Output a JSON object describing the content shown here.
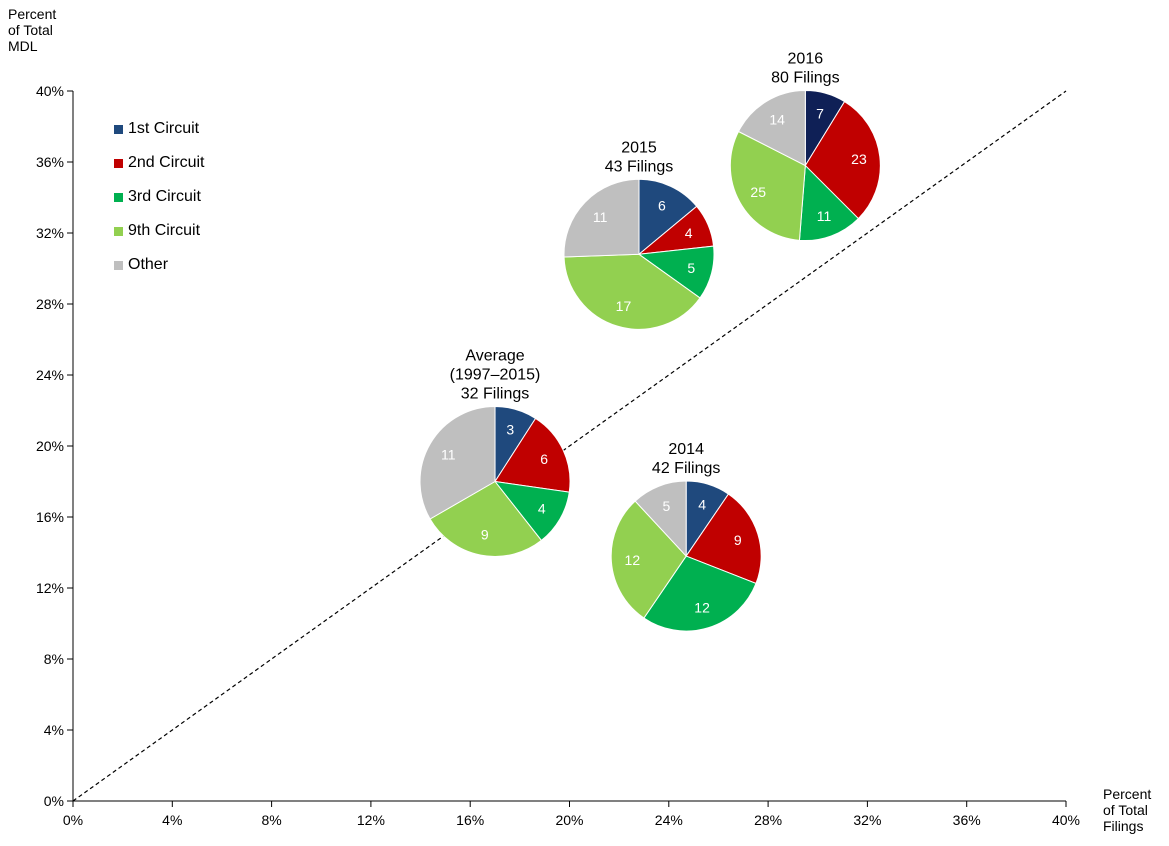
{
  "chart_data": {
    "type": "scatter",
    "subtype": "pie-bubble",
    "y_title": [
      "Percent",
      "of Total",
      "MDL"
    ],
    "x_title": [
      "Percent",
      "of Total",
      "Filings"
    ],
    "xlim": [
      0,
      40
    ],
    "ylim": [
      0,
      40
    ],
    "x_ticks": [
      "0%",
      "4%",
      "8%",
      "12%",
      "16%",
      "20%",
      "24%",
      "28%",
      "32%",
      "36%",
      "40%"
    ],
    "y_ticks": [
      "0%",
      "4%",
      "8%",
      "12%",
      "16%",
      "20%",
      "24%",
      "28%",
      "32%",
      "36%",
      "40%"
    ],
    "reference_line": {
      "style": "dashed",
      "from": [
        0,
        0
      ],
      "to": [
        40,
        40
      ]
    },
    "grid": false,
    "legend_position": "top-left",
    "legend": [
      {
        "name": "1st Circuit",
        "color": "#1f497d"
      },
      {
        "name": "2nd Circuit",
        "color": "#c00000"
      },
      {
        "name": "3rd Circuit",
        "color": "#00b050"
      },
      {
        "name": "9th Circuit",
        "color": "#92d050"
      },
      {
        "name": "Other",
        "color": "#bfbfbf"
      }
    ],
    "pies": [
      {
        "id": "average",
        "label_lines": [
          "Average",
          "(1997–2015)",
          "32 Filings"
        ],
        "x": 17,
        "y": 18,
        "slices": [
          {
            "category": "1st Circuit",
            "value": 3,
            "color": "#1f497d"
          },
          {
            "category": "2nd Circuit",
            "value": 6,
            "color": "#c00000"
          },
          {
            "category": "3rd Circuit",
            "value": 4,
            "color": "#00b050"
          },
          {
            "category": "9th Circuit",
            "value": 9,
            "color": "#92d050"
          },
          {
            "category": "Other",
            "value": 11,
            "color": "#bfbfbf"
          }
        ]
      },
      {
        "id": "2014",
        "label_lines": [
          "2014",
          "42 Filings"
        ],
        "x": 24.7,
        "y": 13.8,
        "slices": [
          {
            "category": "1st Circuit",
            "value": 4,
            "color": "#1f497d"
          },
          {
            "category": "2nd Circuit",
            "value": 9,
            "color": "#c00000"
          },
          {
            "category": "3rd Circuit",
            "value": 12,
            "color": "#00b050"
          },
          {
            "category": "9th Circuit",
            "value": 12,
            "color": "#92d050"
          },
          {
            "category": "Other",
            "value": 5,
            "color": "#bfbfbf"
          }
        ]
      },
      {
        "id": "2015",
        "label_lines": [
          "2015",
          "43 Filings"
        ],
        "x": 22.8,
        "y": 30.8,
        "slices": [
          {
            "category": "1st Circuit",
            "value": 6,
            "color": "#1f497d"
          },
          {
            "category": "2nd Circuit",
            "value": 4,
            "color": "#c00000"
          },
          {
            "category": "3rd Circuit",
            "value": 5,
            "color": "#00b050"
          },
          {
            "category": "9th Circuit",
            "value": 17,
            "color": "#92d050"
          },
          {
            "category": "Other",
            "value": 11,
            "color": "#bfbfbf"
          }
        ]
      },
      {
        "id": "2016",
        "label_lines": [
          "2016",
          "80 Filings"
        ],
        "x": 29.5,
        "y": 35.8,
        "slices": [
          {
            "category": "1st Circuit",
            "value": 7,
            "color": "#0f2056"
          },
          {
            "category": "2nd Circuit",
            "value": 23,
            "color": "#c00000"
          },
          {
            "category": "3rd Circuit",
            "value": 11,
            "color": "#00b050"
          },
          {
            "category": "9th Circuit",
            "value": 25,
            "color": "#92d050"
          },
          {
            "category": "Other",
            "value": 14,
            "color": "#bfbfbf"
          }
        ]
      }
    ]
  }
}
